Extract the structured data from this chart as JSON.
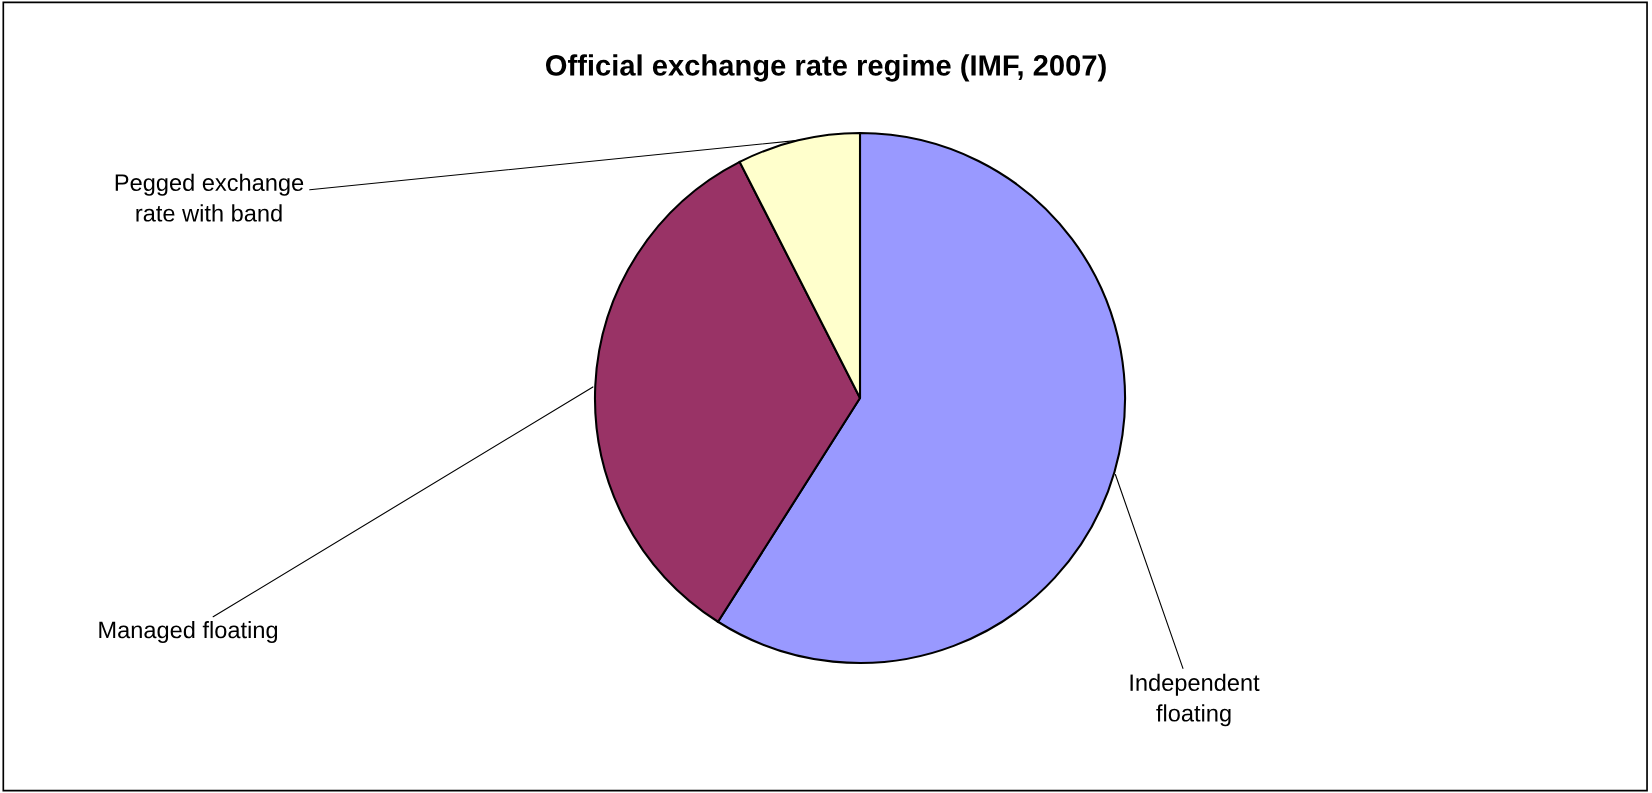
{
  "chart_data": {
    "type": "pie",
    "title": "Official exchange rate regime (IMF, 2007)",
    "categories": [
      "Independent floating",
      "Managed floating",
      "Pegged exchange rate with band"
    ],
    "values": [
      59,
      33.5,
      7.5
    ],
    "colors": [
      "#9999ff",
      "#993366",
      "#ffffcc"
    ]
  }
}
